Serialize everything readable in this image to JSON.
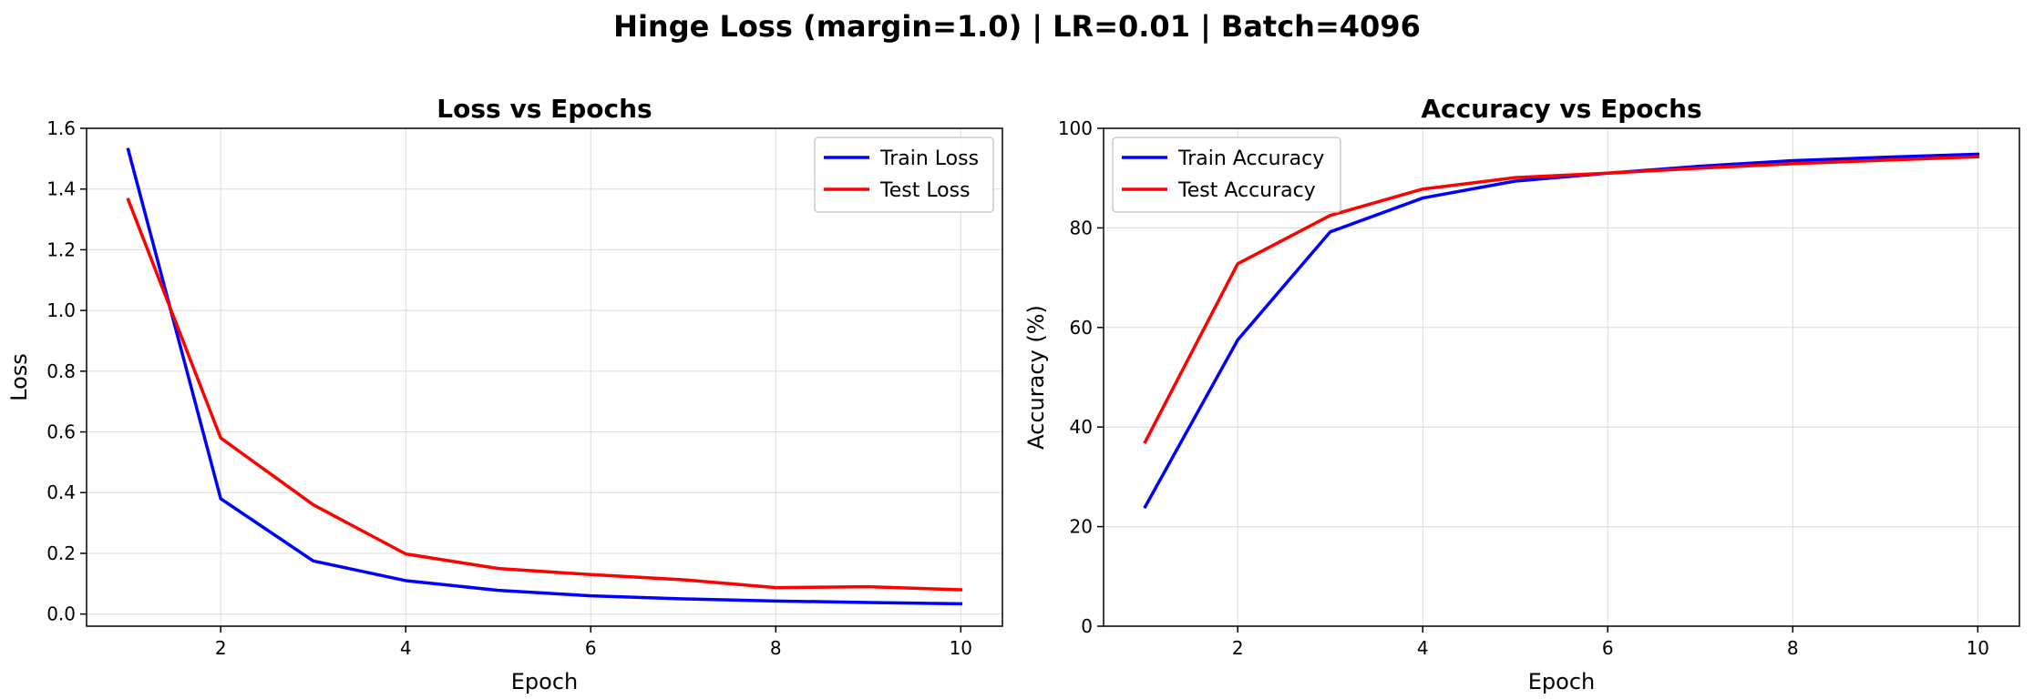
{
  "figure": {
    "title": "Hinge Loss (margin=1.0) | LR=0.01 | Batch=4096"
  },
  "chart_data": [
    {
      "type": "line",
      "title": "Loss vs Epochs",
      "xlabel": "Epoch",
      "ylabel": "Loss",
      "xlim": [
        0.55,
        10.45
      ],
      "ylim": [
        -0.04,
        1.6
      ],
      "xticks": [
        2,
        4,
        6,
        8,
        10
      ],
      "yticks": [
        0.0,
        0.2,
        0.4,
        0.6,
        0.8,
        1.0,
        1.2,
        1.4,
        1.6
      ],
      "ytick_decimals": 1,
      "grid": true,
      "legend_position": "top-right",
      "x": [
        1,
        2,
        3,
        4,
        5,
        6,
        7,
        8,
        9,
        10
      ],
      "series": [
        {
          "name": "Train Loss",
          "color": "#0000ff",
          "values": [
            1.53,
            0.38,
            0.175,
            0.11,
            0.078,
            0.06,
            0.05,
            0.043,
            0.038,
            0.034
          ]
        },
        {
          "name": "Test Loss",
          "color": "#ff0000",
          "values": [
            1.365,
            0.58,
            0.36,
            0.198,
            0.15,
            0.13,
            0.113,
            0.087,
            0.09,
            0.08
          ]
        }
      ]
    },
    {
      "type": "line",
      "title": "Accuracy vs Epochs",
      "xlabel": "Epoch",
      "ylabel": "Accuracy (%)",
      "xlim": [
        0.55,
        10.45
      ],
      "ylim": [
        0,
        100
      ],
      "xticks": [
        2,
        4,
        6,
        8,
        10
      ],
      "yticks": [
        0,
        20,
        40,
        60,
        80,
        100
      ],
      "ytick_decimals": 0,
      "grid": true,
      "legend_position": "top-left",
      "x": [
        1,
        2,
        3,
        4,
        5,
        6,
        7,
        8,
        9,
        10
      ],
      "series": [
        {
          "name": "Train Accuracy",
          "color": "#0000ff",
          "values": [
            24.0,
            57.5,
            79.2,
            86.0,
            89.4,
            91.0,
            92.4,
            93.5,
            94.2,
            94.8
          ]
        },
        {
          "name": "Test Accuracy",
          "color": "#ff0000",
          "values": [
            37.0,
            72.8,
            82.5,
            87.8,
            90.1,
            91.0,
            92.0,
            92.9,
            93.6,
            94.3
          ]
        }
      ]
    }
  ]
}
